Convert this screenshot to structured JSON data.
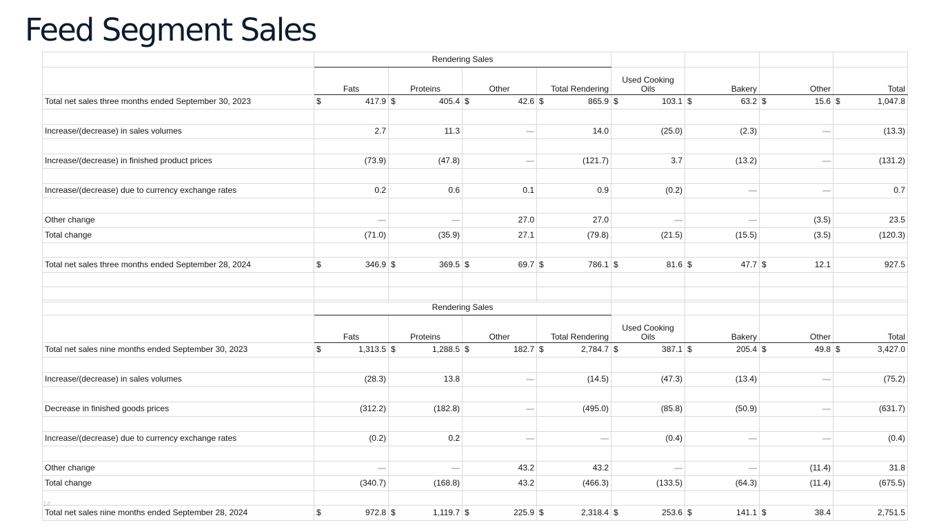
{
  "title": "Feed Segment Sales",
  "page_number": "14",
  "table_top": {
    "group_header": "Rendering Sales",
    "columns": [
      "Fats",
      "Proteins",
      "Other",
      "Total Rendering",
      "Used Cooking\nOils",
      "Bakery",
      "Other",
      "Total"
    ],
    "rows": [
      {
        "label": "Total net sales three months ended September 30, 2023",
        "values": [
          "417.9",
          "405.4",
          "42.6",
          "865.9",
          "103.1",
          "63.2",
          "15.6",
          "1,047.8"
        ],
        "dollar": [
          true,
          true,
          true,
          true,
          true,
          true,
          true,
          true
        ]
      },
      {
        "label": "",
        "values": [
          "",
          "",
          "",
          "",
          "",
          "",
          "",
          ""
        ]
      },
      {
        "label": "Increase/(decrease) in sales volumes",
        "values": [
          "2.7",
          "11.3",
          "—",
          "14.0",
          "(25.0)",
          "(2.3)",
          "—",
          "(13.3)"
        ]
      },
      {
        "label": "",
        "values": [
          "",
          "",
          "",
          "",
          "",
          "",
          "",
          ""
        ]
      },
      {
        "label": "Increase/(decrease) in finished product prices",
        "values": [
          "(73.9)",
          "(47.8)",
          "—",
          "(121.7)",
          "3.7",
          "(13.2)",
          "—",
          "(131.2)"
        ]
      },
      {
        "label": "",
        "values": [
          "",
          "",
          "",
          "",
          "",
          "",
          "",
          ""
        ]
      },
      {
        "label": "Increase/(decrease) due to currency exchange rates",
        "values": [
          "0.2",
          "0.6",
          "0.1",
          "0.9",
          "(0.2)",
          "—",
          "—",
          "0.7"
        ]
      },
      {
        "label": "",
        "values": [
          "",
          "",
          "",
          "",
          "",
          "",
          "",
          ""
        ]
      },
      {
        "label": "Other change",
        "values": [
          "—",
          "—",
          "27.0",
          "27.0",
          "—",
          "—",
          "(3.5)",
          "23.5"
        ]
      },
      {
        "label": "Total change",
        "values": [
          "(71.0)",
          "(35.9)",
          "27.1",
          "(79.8)",
          "(21.5)",
          "(15.5)",
          "(3.5)",
          "(120.3)"
        ],
        "total": true
      },
      {
        "label": "",
        "values": [
          "",
          "",
          "",
          "",
          "",
          "",
          "",
          ""
        ]
      },
      {
        "label": "Total net sales three months ended September 28, 2024",
        "values": [
          "346.9",
          "369.5",
          "69.7",
          "786.1",
          "81.6",
          "47.7",
          "12.1",
          "927.5"
        ],
        "dollar": [
          true,
          true,
          true,
          true,
          true,
          true,
          true,
          false
        ]
      },
      {
        "label": "",
        "values": [
          "",
          "",
          "",
          "",
          "",
          "",
          "",
          ""
        ]
      },
      {
        "label": "",
        "values": [
          "",
          "",
          "",
          "",
          "",
          "",
          "",
          ""
        ]
      }
    ]
  },
  "table_bottom": {
    "group_header": "Rendering Sales",
    "columns": [
      "Fats",
      "Proteins",
      "Other",
      "Total Rendering",
      "Used Cooking\nOils",
      "Bakery",
      "Other",
      "Total"
    ],
    "rows": [
      {
        "label": "Total net sales nine months ended September 30, 2023",
        "values": [
          "1,313.5",
          "1,288.5",
          "182.7",
          "2,784.7",
          "387.1",
          "205.4",
          "49.8",
          "3,427.0"
        ],
        "dollar": [
          true,
          true,
          true,
          true,
          true,
          true,
          true,
          true
        ]
      },
      {
        "label": "",
        "values": [
          "",
          "",
          "",
          "",
          "",
          "",
          "",
          ""
        ]
      },
      {
        "label": "Increase/(decrease) in sales volumes",
        "values": [
          "(28.3)",
          "13.8",
          "—",
          "(14.5)",
          "(47.3)",
          "(13.4)",
          "—",
          "(75.2)"
        ]
      },
      {
        "label": "",
        "values": [
          "",
          "",
          "",
          "",
          "",
          "",
          "",
          ""
        ]
      },
      {
        "label": "Decrease in finished goods prices",
        "values": [
          "(312.2)",
          "(182.8)",
          "—",
          "(495.0)",
          "(85.8)",
          "(50.9)",
          "—",
          "(631.7)"
        ]
      },
      {
        "label": "",
        "values": [
          "",
          "",
          "",
          "",
          "",
          "",
          "",
          ""
        ]
      },
      {
        "label": "Increase/(decrease) due to currency exchange rates",
        "values": [
          "(0.2)",
          "0.2",
          "—",
          "—",
          "(0.4)",
          "—",
          "—",
          "(0.4)"
        ]
      },
      {
        "label": "",
        "values": [
          "",
          "",
          "",
          "",
          "",
          "",
          "",
          ""
        ]
      },
      {
        "label": "Other change",
        "values": [
          "—",
          "—",
          "43.2",
          "43.2",
          "—",
          "—",
          "(11.4)",
          "31.8"
        ]
      },
      {
        "label": "Total change",
        "values": [
          "(340.7)",
          "(168.8)",
          "43.2",
          "(466.3)",
          "(133.5)",
          "(64.3)",
          "(11.4)",
          "(675.5)"
        ],
        "total": true
      },
      {
        "label": "",
        "values": [
          "",
          "",
          "",
          "",
          "",
          "",
          "",
          ""
        ]
      },
      {
        "label": "Total net sales nine months ended September 28, 2024",
        "values": [
          "972.8",
          "1,119.7",
          "225.9",
          "2,318.4",
          "253.6",
          "141.1",
          "38.4",
          "2,751.5"
        ],
        "dollar": [
          true,
          true,
          true,
          true,
          true,
          true,
          true,
          false
        ]
      }
    ]
  }
}
